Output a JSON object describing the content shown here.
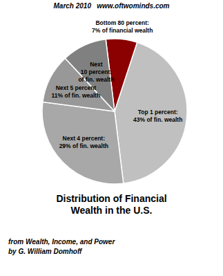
{
  "chart_data": {
    "type": "pie",
    "title": "Distribution of Financial\nWealth in the U.S.",
    "subtitle": "March 2010   www.oftwominds.com",
    "categories": [
      "Bottom 80 percent:\n7% of financial wealth",
      "Top 1 percent:\n43% of fin. wealth",
      "Next 4 percent:\n29% of fin. wealth",
      "Next 5 percent\n11% of fin. wealth",
      "Next\n10 percent:\nof fin. wealth"
    ],
    "values": [
      7,
      43,
      29,
      11,
      10
    ],
    "colors": [
      "#8b0000",
      "#c0c0c0",
      "#a8a8a8",
      "#989898",
      "#808080"
    ],
    "annotations": [
      "from Wealth, Income, and Power",
      "by G. William Domhoff"
    ],
    "legend": false
  }
}
